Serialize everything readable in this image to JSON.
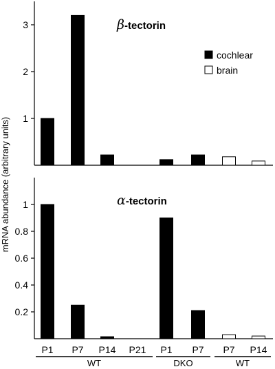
{
  "ylabel": "mRNA abundance (arbitrary units)",
  "legend": {
    "items": [
      {
        "label": "cochlear",
        "fill": "#000000"
      },
      {
        "label": "brain",
        "fill": "#ffffff"
      }
    ],
    "placement": "top-right of top panel"
  },
  "categories": [
    "P1",
    "P7",
    "P14",
    "P21",
    "P1",
    "P7",
    "P7",
    "P14"
  ],
  "groups": [
    {
      "label": "WT",
      "from": 0,
      "to": 3
    },
    {
      "label": "DKO",
      "from": 4,
      "to": 5
    },
    {
      "label": "WT",
      "from": 6,
      "to": 7
    }
  ],
  "chart_data": [
    {
      "type": "bar",
      "title_symbol": "β",
      "title_text": "-tectorin",
      "categories": [
        "P1",
        "P7",
        "P14",
        "P21",
        "P1",
        "P7",
        "P7",
        "P14"
      ],
      "values": [
        1.0,
        3.2,
        0.22,
        0.0,
        0.12,
        0.22,
        0.18,
        0.09
      ],
      "tissue": [
        "cochlear",
        "cochlear",
        "cochlear",
        "cochlear",
        "cochlear",
        "cochlear",
        "brain",
        "brain"
      ],
      "ylim": [
        0,
        3.5
      ],
      "yticks": [
        "1",
        "2",
        "3"
      ],
      "yticks_values": [
        1,
        2,
        3
      ],
      "grid": false
    },
    {
      "type": "bar",
      "title_symbol": "α",
      "title_text": "-tectorin",
      "categories": [
        "P1",
        "P7",
        "P14",
        "P21",
        "P1",
        "P7",
        "P7",
        "P14"
      ],
      "values": [
        1.0,
        0.25,
        0.015,
        0.0,
        0.9,
        0.21,
        0.03,
        0.02
      ],
      "tissue": [
        "cochlear",
        "cochlear",
        "cochlear",
        "cochlear",
        "cochlear",
        "cochlear",
        "brain",
        "brain"
      ],
      "ylim": [
        0,
        1.2
      ],
      "yticks": [
        "0.2",
        "0.4",
        "0.6",
        "0.8",
        "1"
      ],
      "yticks_values": [
        0.2,
        0.4,
        0.6,
        0.8,
        1.0
      ],
      "grid": false
    }
  ]
}
